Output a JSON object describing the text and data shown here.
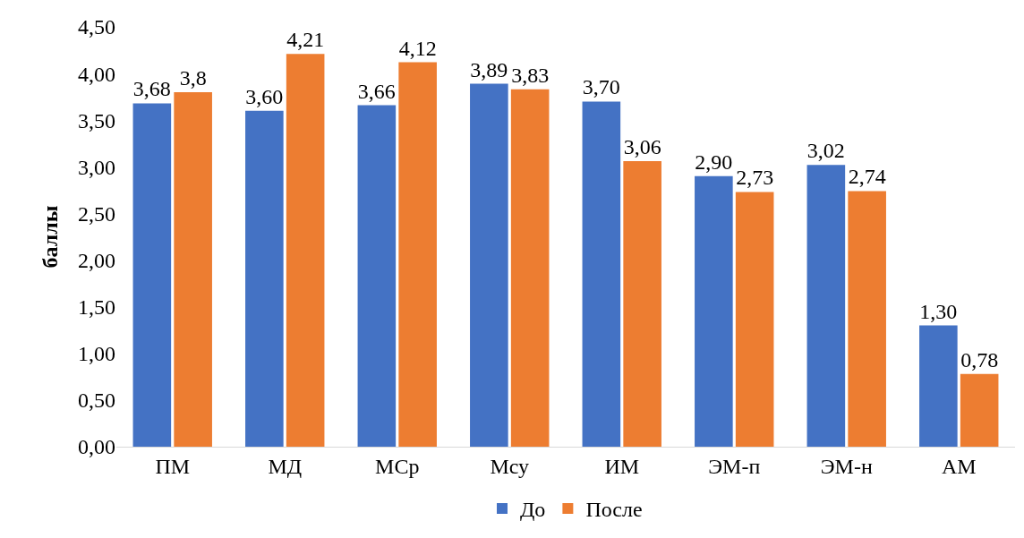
{
  "chart_data": {
    "type": "bar",
    "ylabel": "баллы",
    "categories": [
      "ПМ",
      "МД",
      "МСр",
      "Мсу",
      "ИМ",
      "ЭМ-п",
      "ЭМ-н",
      "АМ"
    ],
    "series": [
      {
        "name": "До",
        "color": "#4472c4",
        "values": [
          3.68,
          3.6,
          3.66,
          3.89,
          3.7,
          2.9,
          3.02,
          1.3
        ],
        "value_labels": [
          "3,68",
          "3,60",
          "3,66",
          "3,89",
          "3,70",
          "2,90",
          "3,02",
          "1,30"
        ]
      },
      {
        "name": "После",
        "color": "#ed7d31",
        "values": [
          3.8,
          4.21,
          4.12,
          3.83,
          3.06,
          2.73,
          2.74,
          0.78
        ],
        "value_labels": [
          "3,8",
          "4,21",
          "4,12",
          "3,83",
          "3,06",
          "2,73",
          "2,74",
          "0,78"
        ]
      }
    ],
    "ylim": [
      0,
      4.5
    ],
    "yticks": [
      {
        "value": 0,
        "label": "0,00"
      },
      {
        "value": 0.5,
        "label": "0,50"
      },
      {
        "value": 1,
        "label": "1,00"
      },
      {
        "value": 1.5,
        "label": "1,50"
      },
      {
        "value": 2,
        "label": "2,00"
      },
      {
        "value": 2.5,
        "label": "2,50"
      },
      {
        "value": 3,
        "label": "3,00"
      },
      {
        "value": 3.5,
        "label": "3,50"
      },
      {
        "value": 4,
        "label": "4,00"
      },
      {
        "value": 4.5,
        "label": "4,50"
      }
    ],
    "legend": "bottom"
  }
}
